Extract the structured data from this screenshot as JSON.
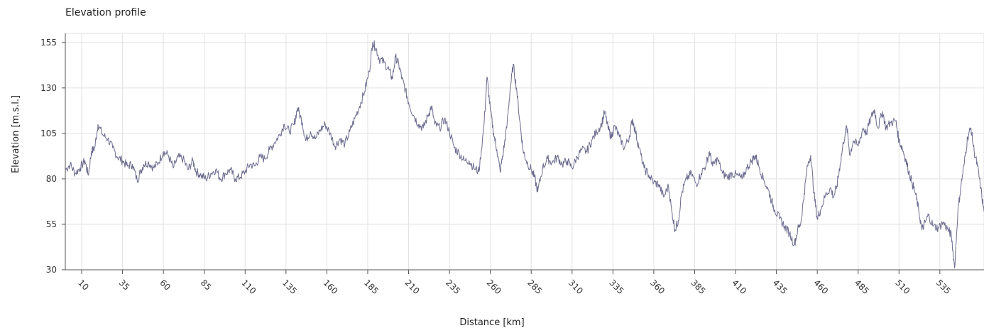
{
  "chart_data": {
    "type": "line",
    "title": "Elevation profile",
    "xlabel": "Distance [km]",
    "ylabel": "Elevation [m.s.l.]",
    "xlim": [
      0,
      555
    ],
    "ylim": [
      30,
      160
    ],
    "xticks": [
      10,
      35,
      60,
      85,
      110,
      135,
      160,
      185,
      210,
      235,
      260,
      285,
      310,
      335,
      360,
      385,
      410,
      435,
      460,
      485,
      510,
      535
    ],
    "yticks": [
      30,
      55,
      80,
      105,
      130,
      155
    ],
    "grid": true,
    "line_color": "#6b6b8f",
    "series": [
      {
        "points": [
          [
            0,
            85
          ],
          [
            3,
            88
          ],
          [
            6,
            83
          ],
          [
            9,
            86
          ],
          [
            12,
            90
          ],
          [
            14,
            82
          ],
          [
            16,
            95
          ],
          [
            18,
            97
          ],
          [
            20,
            110
          ],
          [
            23,
            104
          ],
          [
            26,
            102
          ],
          [
            29,
            97
          ],
          [
            32,
            92
          ],
          [
            35,
            90
          ],
          [
            38,
            87
          ],
          [
            41,
            88
          ],
          [
            44,
            79
          ],
          [
            46,
            84
          ],
          [
            48,
            88
          ],
          [
            51,
            89
          ],
          [
            54,
            86
          ],
          [
            57,
            89
          ],
          [
            60,
            95
          ],
          [
            63,
            93
          ],
          [
            66,
            86
          ],
          [
            69,
            92
          ],
          [
            72,
            91
          ],
          [
            75,
            85
          ],
          [
            78,
            90
          ],
          [
            80,
            84
          ],
          [
            83,
            82
          ],
          [
            86,
            80
          ],
          [
            89,
            83
          ],
          [
            92,
            85
          ],
          [
            95,
            80
          ],
          [
            98,
            83
          ],
          [
            101,
            85
          ],
          [
            104,
            80
          ],
          [
            107,
            81
          ],
          [
            110,
            84
          ],
          [
            113,
            88
          ],
          [
            116,
            87
          ],
          [
            119,
            92
          ],
          [
            122,
            91
          ],
          [
            125,
            96
          ],
          [
            128,
            100
          ],
          [
            131,
            104
          ],
          [
            134,
            110
          ],
          [
            137,
            106
          ],
          [
            140,
            110
          ],
          [
            142,
            119
          ],
          [
            145,
            111
          ],
          [
            147,
            101
          ],
          [
            150,
            106
          ],
          [
            153,
            102
          ],
          [
            156,
            107
          ],
          [
            159,
            110
          ],
          [
            162,
            105
          ],
          [
            165,
            98
          ],
          [
            168,
            102
          ],
          [
            171,
            99
          ],
          [
            174,
            106
          ],
          [
            177,
            113
          ],
          [
            180,
            120
          ],
          [
            183,
            128
          ],
          [
            186,
            139
          ],
          [
            188,
            155
          ],
          [
            190,
            152
          ],
          [
            192,
            146
          ],
          [
            195,
            144
          ],
          [
            198,
            140
          ],
          [
            200,
            135
          ],
          [
            202,
            147
          ],
          [
            204,
            143
          ],
          [
            206,
            135
          ],
          [
            208,
            129
          ],
          [
            210,
            122
          ],
          [
            213,
            115
          ],
          [
            216,
            110
          ],
          [
            219,
            108
          ],
          [
            222,
            115
          ],
          [
            224,
            120
          ],
          [
            226,
            110
          ],
          [
            229,
            108
          ],
          [
            232,
            113
          ],
          [
            235,
            106
          ],
          [
            238,
            97
          ],
          [
            241,
            94
          ],
          [
            244,
            90
          ],
          [
            247,
            90
          ],
          [
            250,
            86
          ],
          [
            253,
            84
          ],
          [
            256,
            108
          ],
          [
            258,
            136
          ],
          [
            260,
            118
          ],
          [
            262,
            105
          ],
          [
            264,
            96
          ],
          [
            266,
            84
          ],
          [
            268,
            95
          ],
          [
            270,
            108
          ],
          [
            272,
            128
          ],
          [
            274,
            143
          ],
          [
            276,
            130
          ],
          [
            278,
            112
          ],
          [
            280,
            96
          ],
          [
            282,
            90
          ],
          [
            285,
            85
          ],
          [
            287,
            81
          ],
          [
            289,
            73
          ],
          [
            292,
            86
          ],
          [
            295,
            91
          ],
          [
            298,
            89
          ],
          [
            301,
            92
          ],
          [
            304,
            88
          ],
          [
            307,
            90
          ],
          [
            310,
            86
          ],
          [
            313,
            92
          ],
          [
            316,
            96
          ],
          [
            319,
            95
          ],
          [
            322,
            101
          ],
          [
            325,
            106
          ],
          [
            328,
            110
          ],
          [
            330,
            117
          ],
          [
            332,
            108
          ],
          [
            334,
            103
          ],
          [
            336,
            109
          ],
          [
            339,
            103
          ],
          [
            342,
            97
          ],
          [
            345,
            103
          ],
          [
            347,
            113
          ],
          [
            349,
            105
          ],
          [
            351,
            97
          ],
          [
            354,
            86
          ],
          [
            357,
            82
          ],
          [
            360,
            78
          ],
          [
            363,
            77
          ],
          [
            366,
            70
          ],
          [
            369,
            76
          ],
          [
            371,
            62
          ],
          [
            373,
            52
          ],
          [
            375,
            57
          ],
          [
            377,
            72
          ],
          [
            380,
            80
          ],
          [
            383,
            83
          ],
          [
            386,
            77
          ],
          [
            389,
            83
          ],
          [
            392,
            88
          ],
          [
            394,
            95
          ],
          [
            396,
            87
          ],
          [
            399,
            91
          ],
          [
            402,
            83
          ],
          [
            405,
            81
          ],
          [
            408,
            83
          ],
          [
            411,
            82
          ],
          [
            414,
            80
          ],
          [
            417,
            86
          ],
          [
            420,
            90
          ],
          [
            422,
            93
          ],
          [
            424,
            88
          ],
          [
            427,
            80
          ],
          [
            430,
            74
          ],
          [
            432,
            68
          ],
          [
            434,
            63
          ],
          [
            437,
            58
          ],
          [
            440,
            54
          ],
          [
            443,
            50
          ],
          [
            446,
            44
          ],
          [
            448,
            52
          ],
          [
            450,
            56
          ],
          [
            452,
            72
          ],
          [
            454,
            87
          ],
          [
            456,
            93
          ],
          [
            458,
            72
          ],
          [
            460,
            58
          ],
          [
            462,
            63
          ],
          [
            465,
            71
          ],
          [
            468,
            75
          ],
          [
            470,
            70
          ],
          [
            472,
            76
          ],
          [
            474,
            88
          ],
          [
            476,
            100
          ],
          [
            478,
            109
          ],
          [
            480,
            93
          ],
          [
            482,
            101
          ],
          [
            485,
            98
          ],
          [
            488,
            108
          ],
          [
            490,
            105
          ],
          [
            493,
            114
          ],
          [
            495,
            118
          ],
          [
            497,
            108
          ],
          [
            500,
            117
          ],
          [
            502,
            108
          ],
          [
            505,
            111
          ],
          [
            508,
            112
          ],
          [
            510,
            101
          ],
          [
            512,
            97
          ],
          [
            514,
            91
          ],
          [
            516,
            84
          ],
          [
            518,
            78
          ],
          [
            520,
            72
          ],
          [
            522,
            63
          ],
          [
            524,
            52
          ],
          [
            526,
            56
          ],
          [
            528,
            60
          ],
          [
            531,
            54
          ],
          [
            534,
            53
          ],
          [
            537,
            56
          ],
          [
            540,
            52
          ],
          [
            542,
            49
          ],
          [
            544,
            31
          ],
          [
            546,
            62
          ],
          [
            548,
            77
          ],
          [
            550,
            89
          ],
          [
            552,
            103
          ],
          [
            554,
            108
          ],
          [
            556,
            95
          ],
          [
            558,
            87
          ],
          [
            560,
            75
          ],
          [
            562,
            62
          ]
        ]
      }
    ]
  }
}
